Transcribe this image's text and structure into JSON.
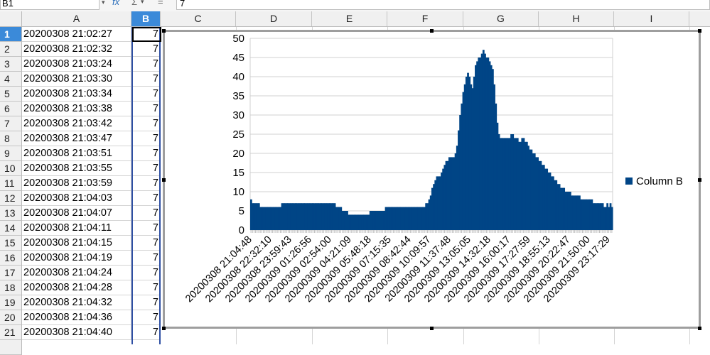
{
  "formula_bar": {
    "name_box": "B1",
    "fx_icon": "function-wizard-icon",
    "sigma_icon": "sum-icon",
    "equals_icon": "formula-icon",
    "value": "7"
  },
  "columns": [
    "A",
    "B",
    "C",
    "D",
    "E",
    "F",
    "G",
    "H",
    "I"
  ],
  "selected_column": "B",
  "rows": [
    {
      "n": "1",
      "a": "20200308 21:02:27",
      "b": "7"
    },
    {
      "n": "2",
      "a": "20200308 21:02:32",
      "b": "7"
    },
    {
      "n": "3",
      "a": "20200308 21:03:24",
      "b": "7"
    },
    {
      "n": "4",
      "a": "20200308 21:03:30",
      "b": "7"
    },
    {
      "n": "5",
      "a": "20200308 21:03:34",
      "b": "7"
    },
    {
      "n": "6",
      "a": "20200308 21:03:38",
      "b": "7"
    },
    {
      "n": "7",
      "a": "20200308 21:03:42",
      "b": "7"
    },
    {
      "n": "8",
      "a": "20200308 21:03:47",
      "b": "7"
    },
    {
      "n": "9",
      "a": "20200308 21:03:51",
      "b": "7"
    },
    {
      "n": "10",
      "a": "20200308 21:03:55",
      "b": "7"
    },
    {
      "n": "11",
      "a": "20200308 21:03:59",
      "b": "7"
    },
    {
      "n": "12",
      "a": "20200308 21:04:03",
      "b": "7"
    },
    {
      "n": "13",
      "a": "20200308 21:04:07",
      "b": "7"
    },
    {
      "n": "14",
      "a": "20200308 21:04:11",
      "b": "7"
    },
    {
      "n": "15",
      "a": "20200308 21:04:15",
      "b": "7"
    },
    {
      "n": "16",
      "a": "20200308 21:04:19",
      "b": "7"
    },
    {
      "n": "17",
      "a": "20200308 21:04:24",
      "b": "7"
    },
    {
      "n": "18",
      "a": "20200308 21:04:28",
      "b": "7"
    },
    {
      "n": "19",
      "a": "20200308 21:04:32",
      "b": "7"
    },
    {
      "n": "20",
      "a": "20200308 21:04:36",
      "b": "7"
    },
    {
      "n": "21",
      "a": "20200308 21:04:40",
      "b": "7"
    }
  ],
  "chart_data": {
    "type": "bar",
    "ylim": [
      0,
      50
    ],
    "yticks": [
      0,
      5,
      10,
      15,
      20,
      25,
      30,
      35,
      40,
      45,
      50
    ],
    "grid": true,
    "legend_position": "right",
    "series": [
      {
        "name": "Column B",
        "color": "#004586",
        "values": [
          8,
          7,
          7,
          7,
          7,
          7,
          6,
          6,
          6,
          6,
          6,
          6,
          6,
          6,
          6,
          6,
          6,
          6,
          6,
          6,
          7,
          7,
          7,
          7,
          7,
          7,
          7,
          7,
          7,
          7,
          7,
          7,
          7,
          7,
          7,
          7,
          7,
          7,
          7,
          7,
          7,
          7,
          7,
          7,
          7,
          7,
          7,
          7,
          7,
          7,
          7,
          7,
          7,
          7,
          7,
          6,
          6,
          6,
          6,
          5,
          5,
          5,
          5,
          4,
          4,
          4,
          4,
          4,
          4,
          4,
          4,
          4,
          4,
          4,
          4,
          4,
          4,
          5,
          5,
          5,
          5,
          5,
          5,
          5,
          5,
          5,
          5,
          6,
          6,
          6,
          6,
          6,
          6,
          6,
          6,
          6,
          6,
          6,
          6,
          6,
          6,
          6,
          6,
          6,
          6,
          6,
          6,
          6,
          6,
          6,
          6,
          6,
          6,
          7,
          7,
          8,
          9,
          11,
          12,
          13,
          14,
          14,
          14,
          15,
          16,
          17,
          18,
          18,
          19,
          19,
          19,
          19,
          20,
          22,
          26,
          30,
          33,
          36,
          38,
          40,
          41,
          40,
          38,
          37,
          40,
          43,
          44,
          45,
          45,
          46,
          47,
          46,
          45,
          45,
          44,
          43,
          42,
          38,
          33,
          28,
          25,
          24,
          24,
          24,
          24,
          24,
          24,
          24,
          25,
          25,
          24,
          24,
          24,
          23,
          23,
          24,
          24,
          23,
          23,
          22,
          21,
          21,
          20,
          20,
          19,
          19,
          18,
          18,
          17,
          17,
          16,
          16,
          15,
          15,
          14,
          14,
          13,
          13,
          12,
          12,
          11,
          11,
          11,
          10,
          10,
          10,
          10,
          9,
          9,
          9,
          9,
          9,
          9,
          8,
          8,
          8,
          8,
          8,
          8,
          8,
          8,
          7,
          7,
          7,
          7,
          7,
          7,
          7,
          6,
          6,
          7,
          6,
          7,
          6
        ]
      }
    ],
    "xticklabels": [
      "20200308 21:04:48",
      "20200308 22:32:10",
      "20200308 23:59:43",
      "20200309 01:26:56",
      "20200309 02:54:00",
      "20200309 04:21:09",
      "20200309 05:48:18",
      "20200309 07:15:35",
      "20200309 08:42:44",
      "20200309 10:09:57",
      "20200309 11:37:48",
      "20200309 13:05:05",
      "20200309 14:32:18",
      "20200309 16:00:17",
      "20200309 17:27:59",
      "20200309 18:55:13",
      "20200309 20:22:47",
      "20200309 21:50:00",
      "20200309 23:17:29"
    ]
  }
}
